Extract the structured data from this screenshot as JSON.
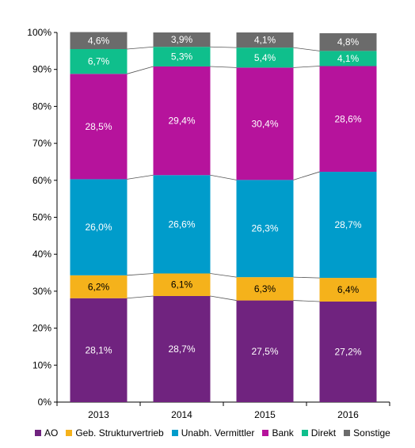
{
  "chart_data": {
    "type": "bar",
    "stacked": true,
    "percent_scale": true,
    "categories": [
      "2013",
      "2014",
      "2015",
      "2016"
    ],
    "ylim": [
      0,
      100
    ],
    "yticks": [
      "0%",
      "10%",
      "20%",
      "30%",
      "40%",
      "50%",
      "60%",
      "70%",
      "80%",
      "90%",
      "100%"
    ],
    "legend_position": "bottom",
    "series": [
      {
        "name": "AO",
        "color": "#70237f",
        "values": [
          28.1,
          28.7,
          27.5,
          27.2
        ],
        "labels": [
          "28,1%",
          "28,7%",
          "27,5%",
          "27,2%"
        ]
      },
      {
        "name": "Geb. Strukturvertrieb",
        "color": "#f5b21b",
        "values": [
          6.2,
          6.1,
          6.3,
          6.4
        ],
        "labels": [
          "6,2%",
          "6,1%",
          "6,3%",
          "6,4%"
        ]
      },
      {
        "name": "Unabh. Vermittler",
        "color": "#009ccb",
        "values": [
          26.0,
          26.6,
          26.3,
          28.7
        ],
        "labels": [
          "26,0%",
          "26,6%",
          "26,3%",
          "28,7%"
        ]
      },
      {
        "name": "Bank",
        "color": "#b6139c",
        "values": [
          28.5,
          29.4,
          30.4,
          28.6
        ],
        "labels": [
          "28,5%",
          "29,4%",
          "30,4%",
          "28,6%"
        ]
      },
      {
        "name": "Direkt",
        "color": "#0fbf8c",
        "values": [
          6.7,
          5.3,
          5.4,
          4.1
        ],
        "labels": [
          "6,7%",
          "5,3%",
          "5,4%",
          "4,1%"
        ]
      },
      {
        "name": "Sonstige",
        "color": "#6b6b6b",
        "values": [
          4.6,
          3.9,
          4.1,
          4.8
        ],
        "labels": [
          "4,6%",
          "3,9%",
          "4,1%",
          "4,8%"
        ]
      }
    ]
  }
}
